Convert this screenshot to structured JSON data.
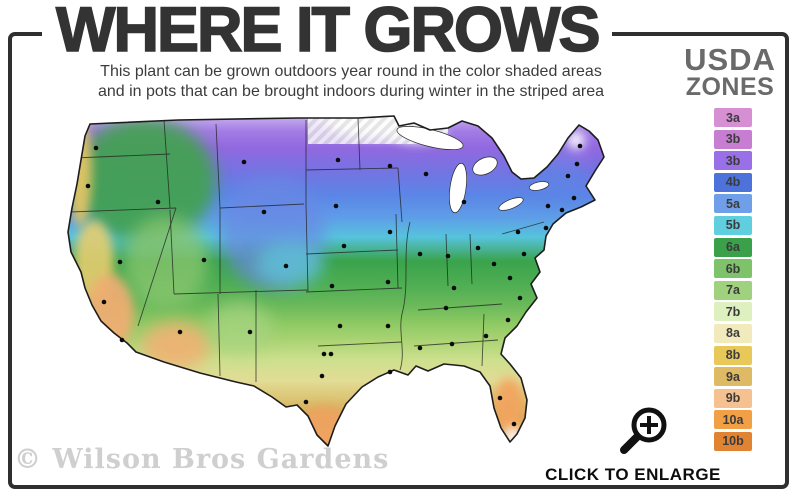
{
  "header": {
    "title": "WHERE IT GROWS",
    "subtitle_line1": "This plant can be grown outdoors year round in the color shaded areas",
    "subtitle_line2": "and in pots that can be brought indoors during winter in the striped area"
  },
  "legend": {
    "title_line1": "USDA",
    "title_line2": "ZONES",
    "zones": [
      {
        "label": "3a",
        "color": "#d78fd4"
      },
      {
        "label": "3b",
        "color": "#c77ed2"
      },
      {
        "label": "3b",
        "color": "#9a70e8"
      },
      {
        "label": "4b",
        "color": "#4d73da"
      },
      {
        "label": "5a",
        "color": "#6f9fe9"
      },
      {
        "label": "5b",
        "color": "#5fcede"
      },
      {
        "label": "6a",
        "color": "#3ba04a"
      },
      {
        "label": "6b",
        "color": "#7ec26a"
      },
      {
        "label": "7a",
        "color": "#9fd17e"
      },
      {
        "label": "7b",
        "color": "#def0c0"
      },
      {
        "label": "8a",
        "color": "#f0eabc"
      },
      {
        "label": "8b",
        "color": "#e9c85a"
      },
      {
        "label": "9a",
        "color": "#dfba64"
      },
      {
        "label": "9b",
        "color": "#f6c190"
      },
      {
        "label": "10a",
        "color": "#f1a045"
      },
      {
        "label": "10b",
        "color": "#e08332"
      }
    ]
  },
  "footer": {
    "watermark": "© Wilson Bros Gardens",
    "enlarge_label": "CLICK TO ENLARGE"
  }
}
